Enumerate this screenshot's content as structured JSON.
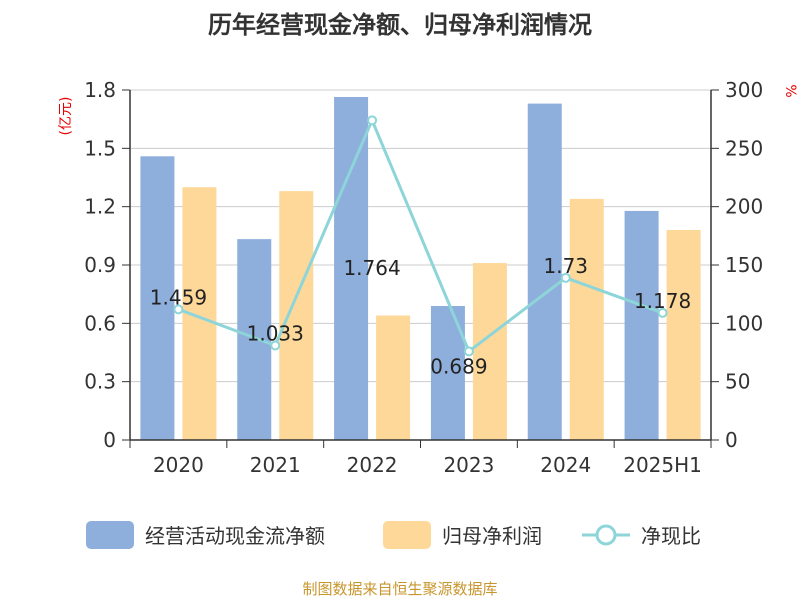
{
  "chart_data": {
    "type": "bar",
    "title": "历年经营现金净额、归母净利润情况",
    "categories": [
      "2020",
      "2021",
      "2022",
      "2023",
      "2024",
      "2025H1"
    ],
    "series": [
      {
        "name": "经营活动现金流净额",
        "kind": "bar",
        "axis": "left",
        "color": "#8eaedb",
        "values": [
          1.459,
          1.033,
          1.764,
          0.689,
          1.73,
          1.178
        ]
      },
      {
        "name": "归母净利润",
        "kind": "bar",
        "axis": "left",
        "color": "#fed899",
        "values": [
          1.3,
          1.28,
          0.64,
          0.91,
          1.24,
          1.08
        ]
      },
      {
        "name": "净现比",
        "kind": "line",
        "axis": "right",
        "color": "#8dd5d9",
        "values": [
          112,
          81,
          274,
          76,
          139,
          109
        ]
      }
    ],
    "data_labels": [
      "1.459",
      "1.033",
      "1.764",
      "0.689",
      "1.73",
      "1.178"
    ],
    "y_left": {
      "unit": "(亿元)",
      "ylim": [
        0,
        1.8
      ],
      "ticks": [
        "0",
        "0.3",
        "0.6",
        "0.9",
        "1.2",
        "1.5",
        "1.8"
      ]
    },
    "y_right": {
      "unit": "%",
      "ylim": [
        0,
        300
      ],
      "ticks": [
        "0",
        "50",
        "100",
        "150",
        "200",
        "250",
        "300"
      ]
    },
    "grid": true,
    "legend_position": "bottom"
  },
  "source": "制图数据来自恒生聚源数据库"
}
